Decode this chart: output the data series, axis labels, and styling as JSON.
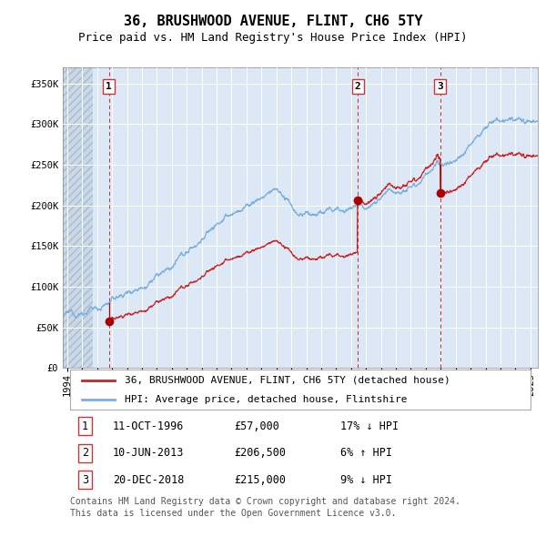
{
  "title": "36, BRUSHWOOD AVENUE, FLINT, CH6 5TY",
  "subtitle": "Price paid vs. HM Land Registry's House Price Index (HPI)",
  "ylim": [
    0,
    370000
  ],
  "ytick_values": [
    0,
    50000,
    100000,
    150000,
    200000,
    250000,
    300000,
    350000
  ],
  "ytick_labels": [
    "£0",
    "£50K",
    "£100K",
    "£150K",
    "£200K",
    "£250K",
    "£300K",
    "£350K"
  ],
  "xlim_start": 1993.7,
  "xlim_end": 2025.5,
  "hpi_color": "#7aaedc",
  "price_color": "#cc2222",
  "bg_color": "#dce8f5",
  "hatch_color": "#c8d8e8",
  "grid_color": "#ffffff",
  "sale_marker_color": "#aa0000",
  "vline_color": "#cc3333",
  "legend_label_red": "36, BRUSHWOOD AVENUE, FLINT, CH6 5TY (detached house)",
  "legend_label_blue": "HPI: Average price, detached house, Flintshire",
  "sale1_x": 1996.78,
  "sale1_y": 57000,
  "sale2_x": 2013.44,
  "sale2_y": 206500,
  "sale3_x": 2018.97,
  "sale3_y": 215000,
  "table_rows": [
    [
      "1",
      "11-OCT-1996",
      "£57,000",
      "17% ↓ HPI"
    ],
    [
      "2",
      "10-JUN-2013",
      "£206,500",
      "6% ↑ HPI"
    ],
    [
      "3",
      "20-DEC-2018",
      "£215,000",
      "9% ↓ HPI"
    ]
  ],
  "footnote": "Contains HM Land Registry data © Crown copyright and database right 2024.\nThis data is licensed under the Open Government Licence v3.0.",
  "title_fontsize": 11,
  "subtitle_fontsize": 9,
  "tick_fontsize": 7.5,
  "legend_fontsize": 8,
  "table_fontsize": 8.5,
  "footnote_fontsize": 7
}
